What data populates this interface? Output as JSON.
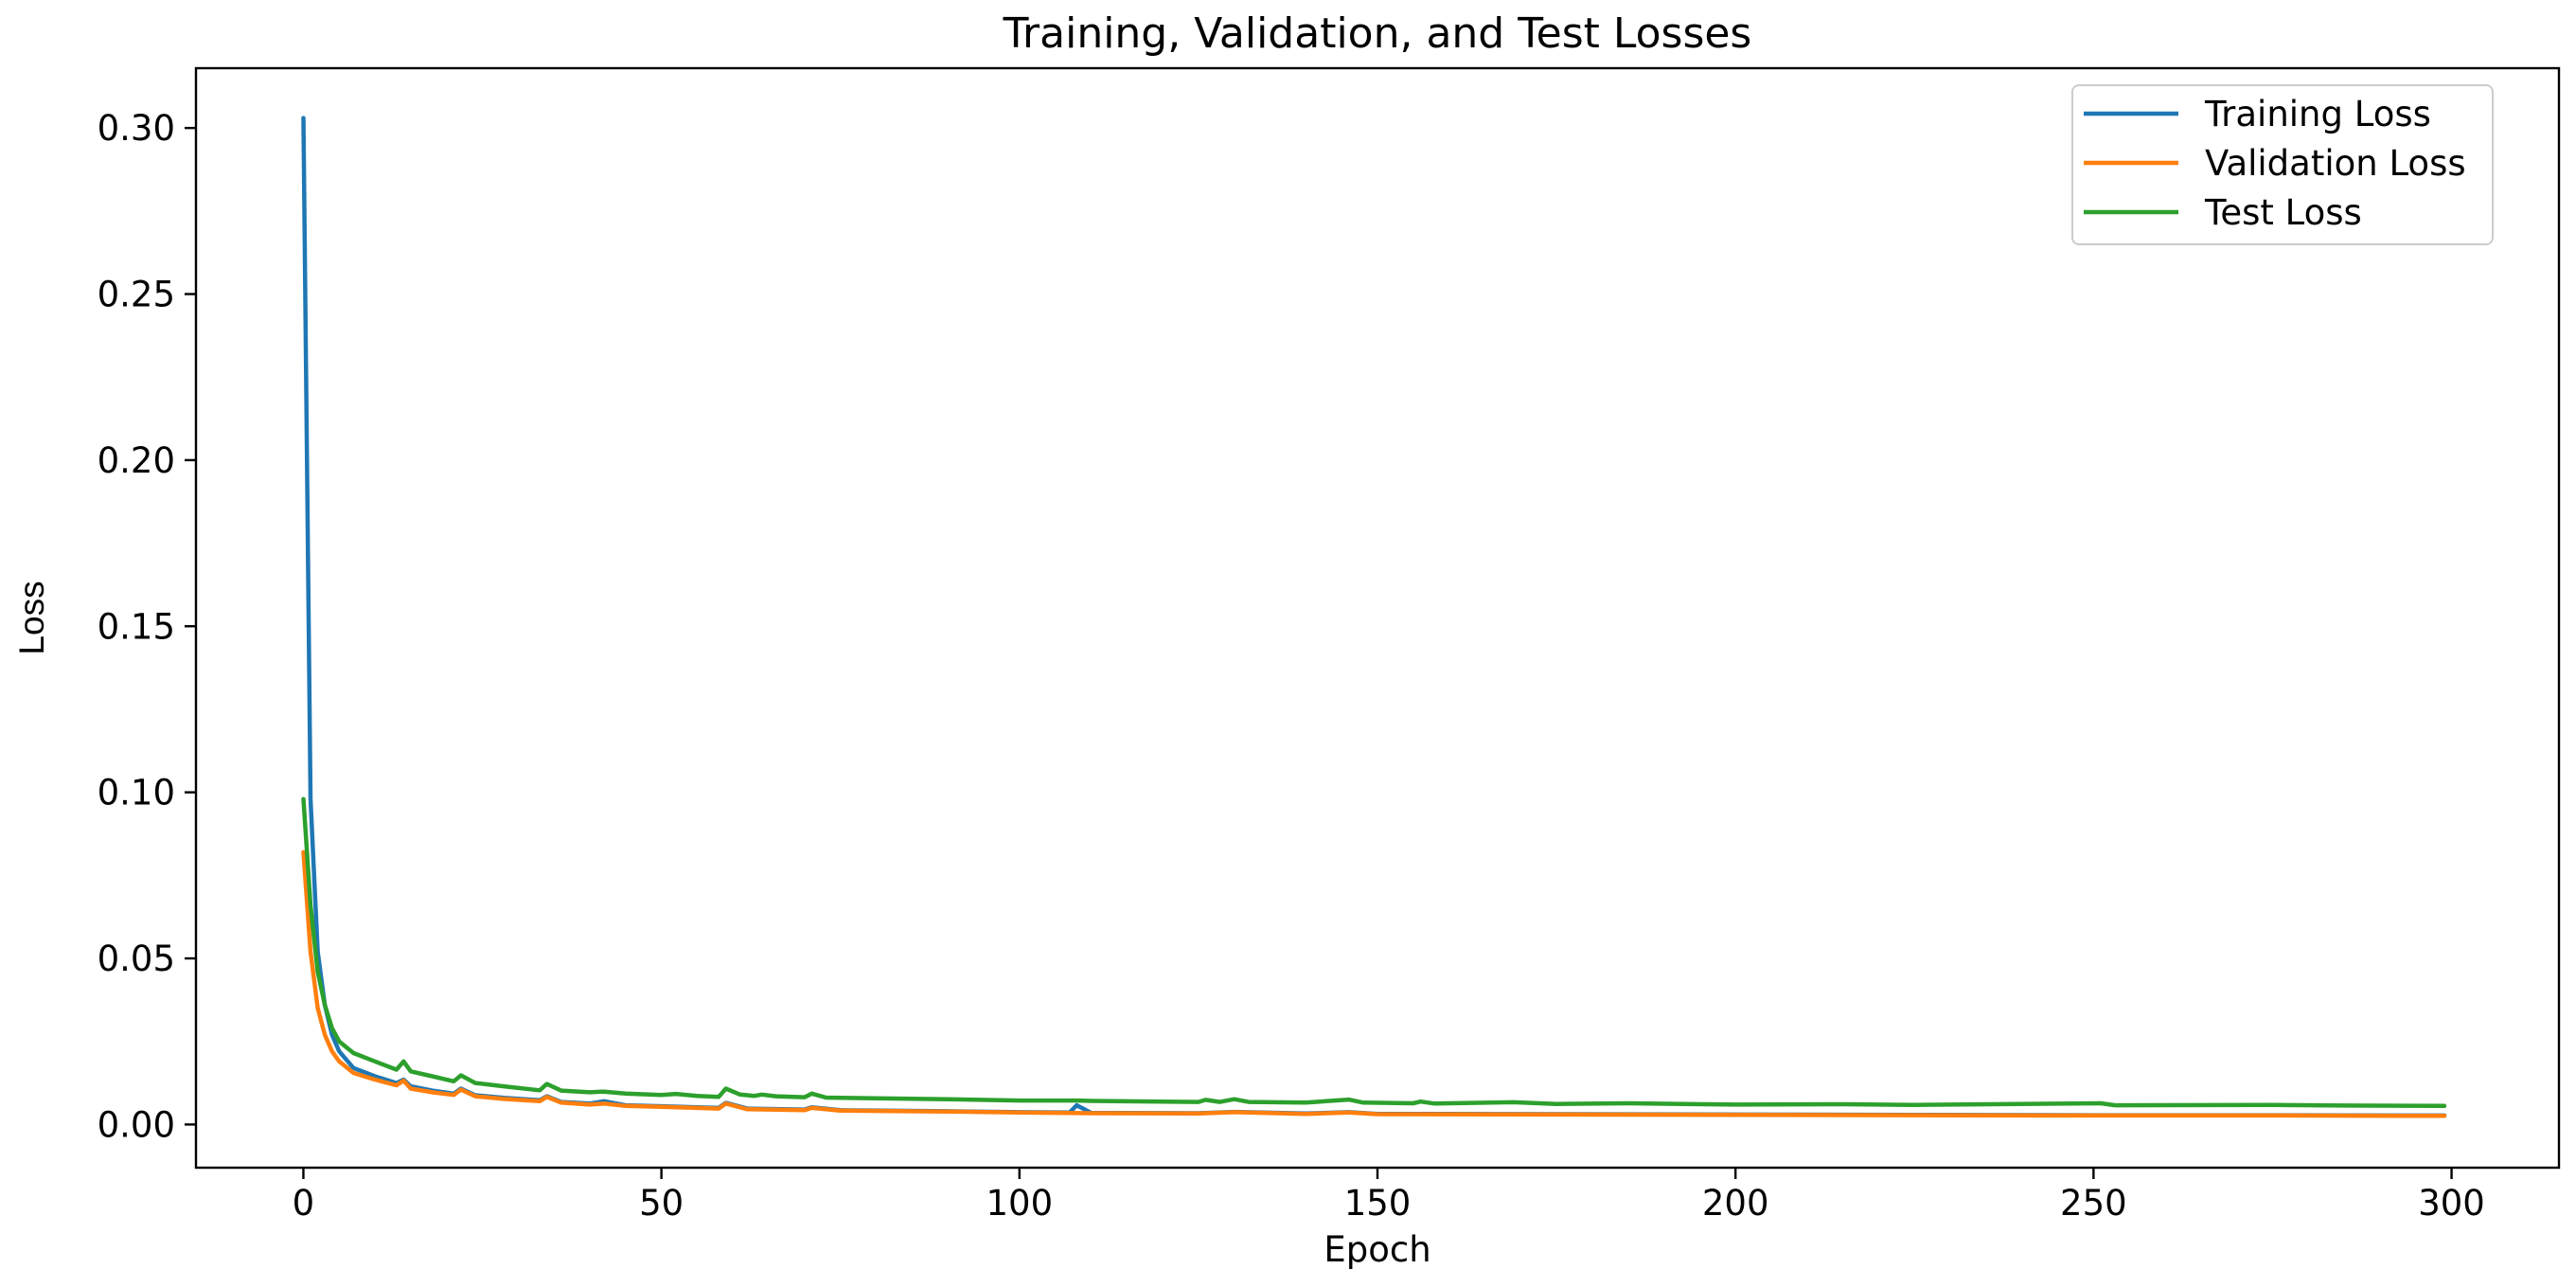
{
  "chart_data": {
    "type": "line",
    "title": "Training, Validation, and Test Losses",
    "xlabel": "Epoch",
    "ylabel": "Loss",
    "xlim": [
      -15,
      315
    ],
    "ylim": [
      -0.013,
      0.318
    ],
    "x_ticks": [
      0,
      50,
      100,
      150,
      200,
      250,
      300
    ],
    "x_tick_labels": [
      "0",
      "50",
      "100",
      "150",
      "200",
      "250",
      "300"
    ],
    "y_ticks": [
      0.0,
      0.05,
      0.1,
      0.15,
      0.2,
      0.25,
      0.3
    ],
    "y_tick_labels": [
      "0.00",
      "0.05",
      "0.10",
      "0.15",
      "0.20",
      "0.25",
      "0.30"
    ],
    "grid": false,
    "legend_position": "top-right",
    "series": [
      {
        "name": "Training Loss",
        "color": "#1f77b4",
        "points": [
          [
            0,
            0.303
          ],
          [
            1,
            0.098
          ],
          [
            2,
            0.052
          ],
          [
            3,
            0.036
          ],
          [
            4,
            0.027
          ],
          [
            5,
            0.022
          ],
          [
            7,
            0.017
          ],
          [
            10,
            0.0145
          ],
          [
            13,
            0.0125
          ],
          [
            14,
            0.0135
          ],
          [
            15,
            0.0115
          ],
          [
            18,
            0.0102
          ],
          [
            21,
            0.0093
          ],
          [
            22,
            0.0108
          ],
          [
            24,
            0.0088
          ],
          [
            28,
            0.008
          ],
          [
            33,
            0.0073
          ],
          [
            34,
            0.0085
          ],
          [
            36,
            0.0068
          ],
          [
            40,
            0.0063
          ],
          [
            42,
            0.007
          ],
          [
            45,
            0.0058
          ],
          [
            50,
            0.0055
          ],
          [
            55,
            0.0052
          ],
          [
            58,
            0.005
          ],
          [
            59,
            0.0065
          ],
          [
            62,
            0.0048
          ],
          [
            70,
            0.0045
          ],
          [
            71,
            0.0052
          ],
          [
            75,
            0.0043
          ],
          [
            90,
            0.004
          ],
          [
            100,
            0.0037
          ],
          [
            107,
            0.0036
          ],
          [
            108,
            0.0058
          ],
          [
            110,
            0.0035
          ],
          [
            125,
            0.0034
          ],
          [
            130,
            0.0038
          ],
          [
            140,
            0.0033
          ],
          [
            146,
            0.0037
          ],
          [
            150,
            0.0032
          ],
          [
            175,
            0.0031
          ],
          [
            200,
            0.003
          ],
          [
            225,
            0.0029
          ],
          [
            250,
            0.0028
          ],
          [
            275,
            0.0028
          ],
          [
            299,
            0.0027
          ]
        ]
      },
      {
        "name": "Validation Loss",
        "color": "#ff7f0e",
        "points": [
          [
            0,
            0.082
          ],
          [
            1,
            0.052
          ],
          [
            2,
            0.035
          ],
          [
            3,
            0.027
          ],
          [
            4,
            0.022
          ],
          [
            5,
            0.019
          ],
          [
            7,
            0.0155
          ],
          [
            10,
            0.0135
          ],
          [
            13,
            0.0118
          ],
          [
            14,
            0.0132
          ],
          [
            15,
            0.0108
          ],
          [
            18,
            0.0097
          ],
          [
            21,
            0.0089
          ],
          [
            22,
            0.0105
          ],
          [
            24,
            0.0085
          ],
          [
            28,
            0.0077
          ],
          [
            33,
            0.007
          ],
          [
            34,
            0.0083
          ],
          [
            36,
            0.0066
          ],
          [
            40,
            0.006
          ],
          [
            42,
            0.0063
          ],
          [
            45,
            0.0056
          ],
          [
            50,
            0.0053
          ],
          [
            55,
            0.005
          ],
          [
            58,
            0.0048
          ],
          [
            59,
            0.0063
          ],
          [
            62,
            0.0046
          ],
          [
            70,
            0.0043
          ],
          [
            71,
            0.005
          ],
          [
            75,
            0.0042
          ],
          [
            90,
            0.0039
          ],
          [
            100,
            0.0036
          ],
          [
            110,
            0.0034
          ],
          [
            125,
            0.0033
          ],
          [
            130,
            0.0037
          ],
          [
            140,
            0.0032
          ],
          [
            146,
            0.0036
          ],
          [
            150,
            0.0031
          ],
          [
            175,
            0.003
          ],
          [
            200,
            0.0029
          ],
          [
            225,
            0.0028
          ],
          [
            250,
            0.0027
          ],
          [
            275,
            0.0027
          ],
          [
            299,
            0.0026
          ]
        ]
      },
      {
        "name": "Test Loss",
        "color": "#2ca02c",
        "points": [
          [
            0,
            0.098
          ],
          [
            1,
            0.066
          ],
          [
            2,
            0.046
          ],
          [
            3,
            0.036
          ],
          [
            4,
            0.029
          ],
          [
            5,
            0.025
          ],
          [
            7,
            0.0215
          ],
          [
            10,
            0.019
          ],
          [
            13,
            0.0165
          ],
          [
            14,
            0.019
          ],
          [
            15,
            0.016
          ],
          [
            18,
            0.0145
          ],
          [
            21,
            0.013
          ],
          [
            22,
            0.0148
          ],
          [
            24,
            0.0125
          ],
          [
            28,
            0.0115
          ],
          [
            33,
            0.0103
          ],
          [
            34,
            0.0122
          ],
          [
            36,
            0.0102
          ],
          [
            40,
            0.0097
          ],
          [
            42,
            0.0099
          ],
          [
            45,
            0.0093
          ],
          [
            50,
            0.0089
          ],
          [
            52,
            0.0092
          ],
          [
            55,
            0.0086
          ],
          [
            58,
            0.0083
          ],
          [
            59,
            0.0108
          ],
          [
            61,
            0.009
          ],
          [
            63,
            0.0086
          ],
          [
            64,
            0.009
          ],
          [
            66,
            0.0085
          ],
          [
            70,
            0.0082
          ],
          [
            71,
            0.0093
          ],
          [
            73,
            0.0081
          ],
          [
            80,
            0.0079
          ],
          [
            90,
            0.0076
          ],
          [
            100,
            0.0072
          ],
          [
            108,
            0.0072
          ],
          [
            110,
            0.0071
          ],
          [
            125,
            0.0068
          ],
          [
            126,
            0.0074
          ],
          [
            128,
            0.0068
          ],
          [
            130,
            0.0076
          ],
          [
            132,
            0.0068
          ],
          [
            140,
            0.0066
          ],
          [
            146,
            0.0075
          ],
          [
            148,
            0.0066
          ],
          [
            155,
            0.0064
          ],
          [
            156,
            0.0069
          ],
          [
            158,
            0.0063
          ],
          [
            169,
            0.0067
          ],
          [
            175,
            0.0062
          ],
          [
            185,
            0.0064
          ],
          [
            200,
            0.006
          ],
          [
            215,
            0.0061
          ],
          [
            225,
            0.0059
          ],
          [
            251,
            0.0064
          ],
          [
            253,
            0.0058
          ],
          [
            275,
            0.0059
          ],
          [
            285,
            0.0057
          ],
          [
            299,
            0.0056
          ]
        ]
      }
    ]
  }
}
